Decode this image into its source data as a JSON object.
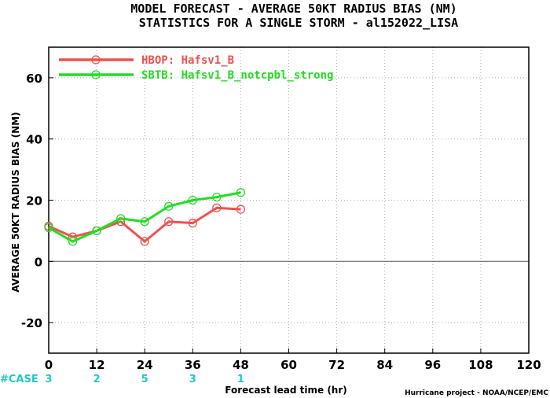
{
  "chart_data": {
    "type": "line",
    "title": "MODEL FORECAST - AVERAGE 50KT RADIUS BIAS (NM)",
    "subtitle": "STATISTICS FOR A SINGLE STORM - al152022_LISA",
    "xlabel": "Forecast lead time (hr)",
    "ylabel": "AVERAGE 50KT RADIUS BIAS (NM)",
    "xlim": [
      0,
      120
    ],
    "ylim": [
      -30,
      70
    ],
    "xticks": [
      0,
      12,
      24,
      36,
      48,
      60,
      72,
      84,
      96,
      108,
      120
    ],
    "yticks": [
      -20,
      0,
      20,
      40,
      60
    ],
    "grid": true,
    "legend_position": "top-left",
    "series": [
      {
        "name": "HBOP: Hafsv1_B",
        "color": "#f05050",
        "x": [
          0,
          6,
          12,
          18,
          24,
          30,
          36,
          42,
          48
        ],
        "y": [
          11.5,
          8,
          10,
          13,
          6.5,
          13,
          12.5,
          17.5,
          17
        ]
      },
      {
        "name": "SBTB: Hafsv1_B_notcpbl_strong",
        "color": "#22dd22",
        "x": [
          0,
          6,
          12,
          18,
          24,
          30,
          36,
          42,
          48
        ],
        "y": [
          11,
          6.5,
          10,
          14,
          13,
          18,
          20,
          21,
          22.5
        ]
      }
    ],
    "cases": {
      "label": "#CASE",
      "color": "#20c8c8",
      "x": [
        0,
        12,
        24,
        36,
        48
      ],
      "values": [
        "3",
        "2",
        "5",
        "3",
        "1"
      ]
    },
    "credit": "Hurricane project - NOAA/NCEP/EMC"
  }
}
